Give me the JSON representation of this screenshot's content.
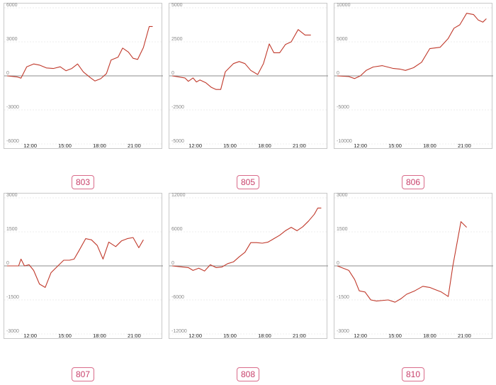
{
  "series_color": "#c0392b",
  "zero_line_color": "#8c8c8c",
  "grid_color": "#e6e6e6",
  "chart_data": [
    {
      "type": "line",
      "label": "803",
      "yticks": [
        -6000,
        -3000,
        0,
        3000,
        6000
      ],
      "ylim": [
        -6000,
        6000
      ],
      "xticks": [
        "12:00",
        "15:00",
        "18:00",
        "21:00"
      ],
      "xlim": [
        10,
        23
      ],
      "x": [
        10.0,
        10.9,
        11.2,
        11.7,
        12.3,
        12.8,
        13.4,
        14.0,
        14.6,
        15.1,
        15.6,
        16.1,
        16.6,
        17.2,
        17.6,
        18.1,
        18.6,
        19.0,
        19.6,
        20.0,
        20.5,
        20.9,
        21.3,
        21.8,
        22.3,
        22.6
      ],
      "y": [
        0,
        -100,
        -200,
        800,
        1050,
        950,
        700,
        650,
        800,
        450,
        650,
        1050,
        350,
        -150,
        -450,
        -250,
        200,
        1400,
        1650,
        2450,
        2100,
        1550,
        1450,
        2500,
        4350,
        4350
      ]
    },
    {
      "type": "line",
      "label": "805",
      "yticks": [
        -5000,
        -2500,
        0,
        2500,
        5000
      ],
      "ylim": [
        -5000,
        5000
      ],
      "xticks": [
        "12:00",
        "15:00",
        "18:00",
        "21:00"
      ],
      "xlim": [
        10,
        23
      ],
      "x": [
        10.0,
        11.1,
        11.4,
        11.8,
        12.1,
        12.4,
        12.9,
        13.4,
        13.8,
        14.2,
        14.6,
        15.3,
        15.8,
        16.3,
        16.8,
        17.4,
        17.9,
        18.4,
        18.8,
        19.3,
        19.8,
        20.3,
        20.9,
        21.5,
        22.0
      ],
      "y": [
        0,
        -150,
        -400,
        -150,
        -450,
        -300,
        -500,
        -850,
        -1000,
        -1000,
        300,
        900,
        1050,
        900,
        400,
        100,
        900,
        2350,
        1700,
        1700,
        2300,
        2500,
        3400,
        3000,
        3000
      ]
    },
    {
      "type": "line",
      "label": "806",
      "yticks": [
        -10000,
        -5000,
        0,
        5000,
        10000
      ],
      "ylim": [
        -10000,
        10000
      ],
      "xticks": [
        "12:00",
        "15:00",
        "18:00",
        "21:00"
      ],
      "xlim": [
        10,
        23
      ],
      "x": [
        10.0,
        11.0,
        11.5,
        12.0,
        12.5,
        13.1,
        13.9,
        14.8,
        15.4,
        15.9,
        16.6,
        17.3,
        18.0,
        18.9,
        19.6,
        20.1,
        20.6,
        21.2,
        21.8,
        22.2,
        22.6,
        22.9
      ],
      "y": [
        0,
        -100,
        -400,
        0,
        800,
        1300,
        1500,
        1100,
        1000,
        800,
        1200,
        2000,
        4000,
        4200,
        5500,
        7000,
        7500,
        9200,
        9000,
        8200,
        7900,
        8400
      ]
    },
    {
      "type": "line",
      "label": "807",
      "yticks": [
        -3000,
        -1500,
        0,
        1500,
        3000
      ],
      "ylim": [
        -3000,
        3000
      ],
      "xticks": [
        "12:00",
        "15:00",
        "18:00",
        "21:00"
      ],
      "xlim": [
        10,
        23
      ],
      "x": [
        10.0,
        11.0,
        11.2,
        11.5,
        11.9,
        12.3,
        12.8,
        13.3,
        13.8,
        14.3,
        14.9,
        15.4,
        15.8,
        16.2,
        16.8,
        17.3,
        17.8,
        18.3,
        18.8,
        19.4,
        19.9,
        20.4,
        20.9,
        21.4,
        21.8
      ],
      "y": [
        0,
        0,
        300,
        0,
        50,
        -200,
        -800,
        -950,
        -300,
        -50,
        250,
        250,
        300,
        650,
        1200,
        1150,
        900,
        300,
        1050,
        850,
        1100,
        1200,
        1250,
        800,
        1150
      ]
    },
    {
      "type": "line",
      "label": "808",
      "yticks": [
        -12000,
        -6000,
        0,
        6000,
        12000
      ],
      "ylim": [
        -12000,
        12000
      ],
      "xticks": [
        "12:00",
        "15:00",
        "18:00",
        "21:00"
      ],
      "xlim": [
        10,
        23
      ],
      "x": [
        10.0,
        11.4,
        11.8,
        12.3,
        12.8,
        13.3,
        13.8,
        14.3,
        14.8,
        15.3,
        15.8,
        16.3,
        16.8,
        17.3,
        17.8,
        18.3,
        18.8,
        19.3,
        19.8,
        20.3,
        20.8,
        21.3,
        21.8,
        22.3,
        22.6,
        22.9
      ],
      "y": [
        0,
        -300,
        -800,
        -400,
        -900,
        200,
        -300,
        -200,
        400,
        700,
        1600,
        2400,
        4100,
        4100,
        4000,
        4200,
        4800,
        5400,
        6200,
        6800,
        6200,
        6900,
        7900,
        9100,
        10200,
        10200
      ]
    },
    {
      "type": "line",
      "label": "810",
      "yticks": [
        -3000,
        -1500,
        0,
        1500,
        3000
      ],
      "ylim": [
        -3000,
        3000
      ],
      "xticks": [
        "12:00",
        "15:00",
        "18:00",
        "21:00"
      ],
      "xlim": [
        10,
        23
      ],
      "x": [
        10.0,
        11.0,
        11.5,
        11.9,
        12.4,
        12.9,
        13.4,
        14.4,
        15.0,
        15.5,
        16.0,
        16.7,
        17.4,
        18.0,
        18.5,
        19.0,
        19.6,
        20.0,
        20.7,
        21.2
      ],
      "y": [
        0,
        -200,
        -600,
        -1100,
        -1150,
        -1500,
        -1550,
        -1500,
        -1600,
        -1450,
        -1250,
        -1100,
        -900,
        -950,
        -1050,
        -1150,
        -1350,
        0,
        1950,
        1700
      ]
    }
  ]
}
